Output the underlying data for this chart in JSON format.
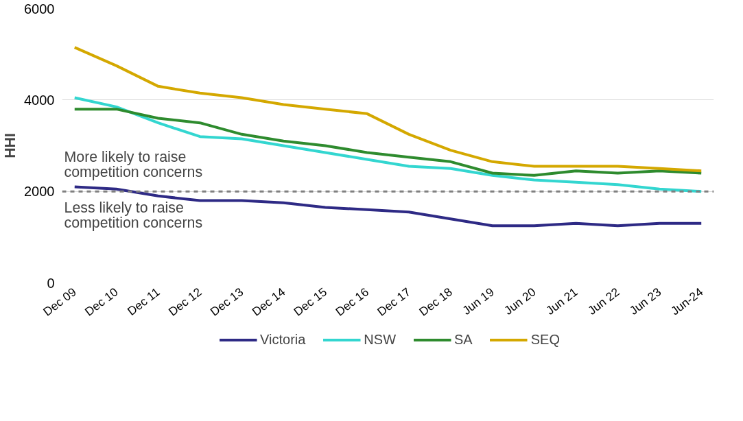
{
  "chart_data": {
    "type": "line",
    "ylabel": "HHI",
    "categories": [
      "Dec 09",
      "Dec 10",
      "Dec 11",
      "Dec 12",
      "Dec 13",
      "Dec 14",
      "Dec 15",
      "Dec 16",
      "Dec 17",
      "Dec 18",
      "Jun 19",
      "Jun 20",
      "Jun 21",
      "Jun 22",
      "Jun 23",
      "Jun-24"
    ],
    "series": [
      {
        "name": "Victoria",
        "color": "#2e2a85",
        "values": [
          2100,
          2050,
          1900,
          1800,
          1800,
          1750,
          1650,
          1600,
          1550,
          1400,
          1250,
          1250,
          1300,
          1250,
          1300,
          1300
        ]
      },
      {
        "name": "NSW",
        "color": "#33d6d0",
        "values": [
          4050,
          3850,
          3500,
          3200,
          3150,
          3000,
          2850,
          2700,
          2550,
          2500,
          2350,
          2250,
          2200,
          2150,
          2050,
          2000
        ]
      },
      {
        "name": "SA",
        "color": "#2e8b2e",
        "values": [
          3800,
          3800,
          3600,
          3500,
          3250,
          3100,
          3000,
          2850,
          2750,
          2650,
          2400,
          2350,
          2450,
          2400,
          2450,
          2400
        ]
      },
      {
        "name": "SEQ",
        "color": "#d4a800",
        "values": [
          5150,
          4750,
          4300,
          4150,
          4050,
          3900,
          3800,
          3700,
          3250,
          2900,
          2650,
          2550,
          2550,
          2550,
          2500,
          2450
        ]
      }
    ],
    "ylim": [
      0,
      6000
    ],
    "yticks": [
      0,
      2000,
      4000,
      6000
    ],
    "grid": "y",
    "legend": "bottom",
    "marker": "none",
    "line_style": "solid",
    "ref_lines": [
      {
        "axis": "y",
        "value": 2000,
        "color": "#808080",
        "line_style": "dashed"
      }
    ],
    "annotations": [
      "More likely to raise\ncompetition concerns",
      "Less likely to raise\ncompetition concerns"
    ]
  }
}
